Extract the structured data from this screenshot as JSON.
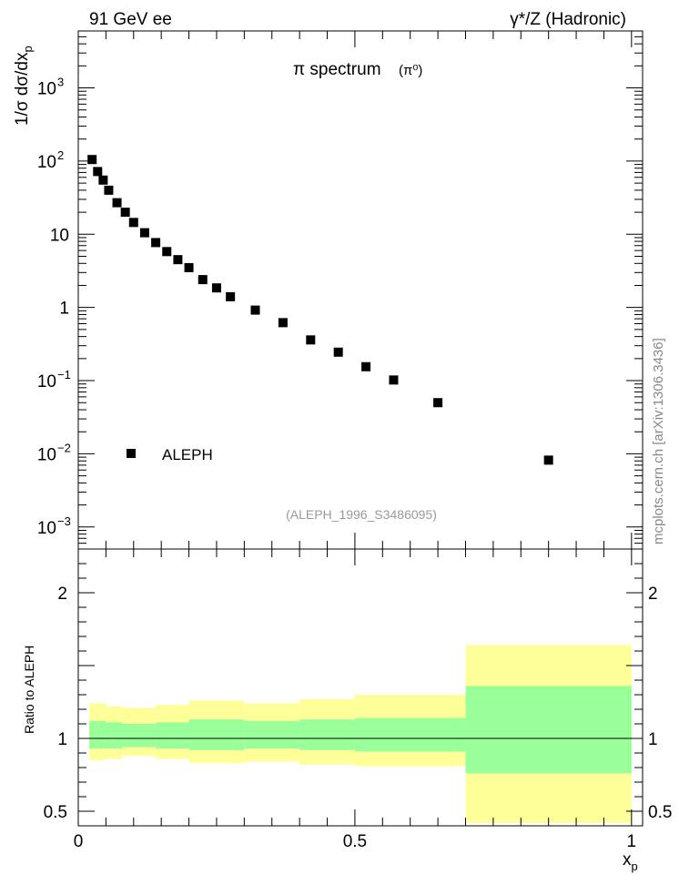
{
  "header": {
    "left_label": "91 GeV ee",
    "right_label": "γ*/Z (Hadronic)"
  },
  "watermark": "mcplots.cern.ch [arXiv:1306.3436]",
  "colors": {
    "outer_band": "#ffff99",
    "inner_band": "#99ff99",
    "marker": "#000000",
    "analysis_label": "#999999"
  },
  "chart_data": [
    {
      "type": "scatter",
      "title": "π spectrum",
      "title_suffix": "(π⁰)",
      "ylabel": "1/σ dσ/dx",
      "ylabel_sub": "p",
      "yscale": "log",
      "xlim": [
        0,
        1.02
      ],
      "ylim": [
        0.0005,
        6000
      ],
      "yticks_major": [
        {
          "value": 0.001,
          "base": "10",
          "exp": "−3"
        },
        {
          "value": 0.01,
          "base": "10",
          "exp": "−2"
        },
        {
          "value": 0.1,
          "base": "10",
          "exp": "−1"
        },
        {
          "value": 1,
          "base": "1",
          "exp": ""
        },
        {
          "value": 10,
          "base": "10",
          "exp": ""
        },
        {
          "value": 100,
          "base": "10",
          "exp": "2"
        },
        {
          "value": 1000,
          "base": "10",
          "exp": "3"
        }
      ],
      "legend": {
        "label": "ALEPH",
        "position": "lower-left"
      },
      "analysis_id": "(ALEPH_1996_S3486095)",
      "series": [
        {
          "name": "ALEPH",
          "points": [
            {
              "x": 0.025,
              "y": 105
            },
            {
              "x": 0.035,
              "y": 72
            },
            {
              "x": 0.045,
              "y": 55
            },
            {
              "x": 0.055,
              "y": 40
            },
            {
              "x": 0.07,
              "y": 27
            },
            {
              "x": 0.085,
              "y": 20
            },
            {
              "x": 0.1,
              "y": 14.5
            },
            {
              "x": 0.12,
              "y": 10.5
            },
            {
              "x": 0.14,
              "y": 7.7
            },
            {
              "x": 0.16,
              "y": 5.8
            },
            {
              "x": 0.18,
              "y": 4.5
            },
            {
              "x": 0.2,
              "y": 3.5
            },
            {
              "x": 0.225,
              "y": 2.4
            },
            {
              "x": 0.25,
              "y": 1.85
            },
            {
              "x": 0.275,
              "y": 1.4
            },
            {
              "x": 0.32,
              "y": 0.92
            },
            {
              "x": 0.37,
              "y": 0.62
            },
            {
              "x": 0.42,
              "y": 0.36
            },
            {
              "x": 0.47,
              "y": 0.245
            },
            {
              "x": 0.52,
              "y": 0.155
            },
            {
              "x": 0.57,
              "y": 0.102
            },
            {
              "x": 0.65,
              "y": 0.05
            },
            {
              "x": 0.85,
              "y": 0.0082
            }
          ]
        }
      ]
    },
    {
      "type": "area",
      "ylabel": "Ratio to ALEPH",
      "xlabel": "x",
      "xlabel_sub": "p",
      "xlim": [
        0,
        1.02
      ],
      "ylim": [
        0.4,
        2.3
      ],
      "xticks": [
        {
          "value": 0,
          "label": "0"
        },
        {
          "value": 0.5,
          "label": "0.5"
        },
        {
          "value": 1,
          "label": "1"
        }
      ],
      "yticks": [
        {
          "value": 0.5,
          "label": "0.5"
        },
        {
          "value": 1,
          "label": "1"
        },
        {
          "value": 1.5,
          "label": ""
        },
        {
          "value": 2,
          "label": "2"
        }
      ],
      "reference_line": 1,
      "bins": [
        {
          "x0": 0.02,
          "x1": 0.05,
          "inner": [
            0.93,
            1.12
          ],
          "outer": [
            0.85,
            1.24
          ]
        },
        {
          "x0": 0.05,
          "x1": 0.08,
          "inner": [
            0.93,
            1.11
          ],
          "outer": [
            0.86,
            1.22
          ]
        },
        {
          "x0": 0.08,
          "x1": 0.14,
          "inner": [
            0.94,
            1.1
          ],
          "outer": [
            0.88,
            1.21
          ]
        },
        {
          "x0": 0.14,
          "x1": 0.2,
          "inner": [
            0.93,
            1.11
          ],
          "outer": [
            0.86,
            1.23
          ]
        },
        {
          "x0": 0.2,
          "x1": 0.3,
          "inner": [
            0.92,
            1.13
          ],
          "outer": [
            0.83,
            1.26
          ]
        },
        {
          "x0": 0.3,
          "x1": 0.4,
          "inner": [
            0.93,
            1.12
          ],
          "outer": [
            0.84,
            1.24
          ]
        },
        {
          "x0": 0.4,
          "x1": 0.5,
          "inner": [
            0.92,
            1.13
          ],
          "outer": [
            0.82,
            1.27
          ]
        },
        {
          "x0": 0.5,
          "x1": 0.7,
          "inner": [
            0.91,
            1.14
          ],
          "outer": [
            0.81,
            1.3
          ]
        },
        {
          "x0": 0.7,
          "x1": 1.0,
          "inner": [
            0.76,
            1.36
          ],
          "outer": [
            0.42,
            1.64
          ]
        }
      ]
    }
  ]
}
